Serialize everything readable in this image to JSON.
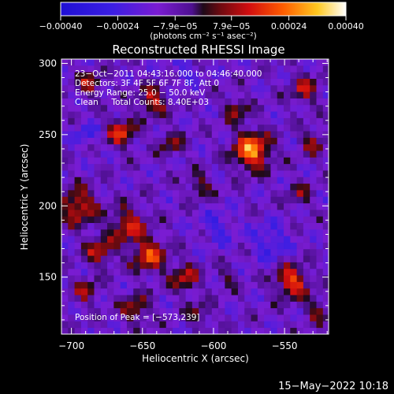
{
  "chart_data": {
    "type": "heatmap",
    "title": "Reconstructed RHESSI Image",
    "xlabel": "Heliocentric X (arcsec)",
    "ylabel": "Heliocentric Y (arcsec)",
    "xlim": [
      -707,
      -519
    ],
    "ylim": [
      110,
      303
    ],
    "x_ticks": [
      {
        "value": -700,
        "label": "−700"
      },
      {
        "value": -650,
        "label": "−650"
      },
      {
        "value": -600,
        "label": "−600"
      },
      {
        "value": -550,
        "label": "−550"
      }
    ],
    "y_ticks": [
      {
        "value": 150,
        "label": "150"
      },
      {
        "value": 200,
        "label": "200"
      },
      {
        "value": 250,
        "label": "250"
      },
      {
        "value": 300,
        "label": "300"
      }
    ],
    "colorbar": {
      "min": -0.0004,
      "max": 0.0004,
      "unit_label": "(photons cm⁻² s⁻¹ asec⁻²)",
      "ticks": [
        {
          "value": -0.0004,
          "label": "−0.00040"
        },
        {
          "value": -0.00024,
          "label": "−0.00024"
        },
        {
          "value": -7.9e-05,
          "label": "−7.9e−05"
        },
        {
          "value": 7.9e-05,
          "label": "7.9e−05"
        },
        {
          "value": 0.00024,
          "label": "0.00024"
        },
        {
          "value": 0.0004,
          "label": "0.00040"
        }
      ]
    },
    "annotations": [
      "23−Oct−2011 04:43:16.000 to 04:46:40.000",
      "Detectors: 3F 4F 5F 6F 7F 8F, Att 0",
      "Energy Range: 25.0 − 50.0 keV",
      "Clean     Total Counts: 8.40E+03"
    ],
    "peak_label": "Position of Peak = [−573,239]",
    "sources": [
      {
        "x": -687,
        "y": 286,
        "amp": 0.0002,
        "sigma": 6
      },
      {
        "x": -665,
        "y": 252,
        "amp": 0.00026,
        "sigma": 7
      },
      {
        "x": -643,
        "y": 274,
        "amp": 0.00024,
        "sigma": 7
      },
      {
        "x": -630,
        "y": 244,
        "amp": 0.00016,
        "sigma": 6
      },
      {
        "x": -573,
        "y": 239,
        "amp": 0.00038,
        "sigma": 9
      },
      {
        "x": -584,
        "y": 268,
        "amp": 0.00018,
        "sigma": 6
      },
      {
        "x": -536,
        "y": 282,
        "amp": 0.0002,
        "sigma": 7
      },
      {
        "x": -530,
        "y": 245,
        "amp": 0.00018,
        "sigma": 6
      },
      {
        "x": -540,
        "y": 208,
        "amp": 0.00014,
        "sigma": 6
      },
      {
        "x": -695,
        "y": 200,
        "amp": 0.00026,
        "sigma": 9
      },
      {
        "x": -660,
        "y": 186,
        "amp": 0.00024,
        "sigma": 9
      },
      {
        "x": -610,
        "y": 214,
        "amp": 0.00016,
        "sigma": 6
      },
      {
        "x": -680,
        "y": 168,
        "amp": 0.00022,
        "sigma": 7
      },
      {
        "x": -645,
        "y": 165,
        "amp": 0.00028,
        "sigma": 8
      },
      {
        "x": -620,
        "y": 150,
        "amp": 0.00022,
        "sigma": 7
      },
      {
        "x": -690,
        "y": 140,
        "amp": 0.00018,
        "sigma": 6
      },
      {
        "x": -655,
        "y": 128,
        "amp": 0.0002,
        "sigma": 7
      },
      {
        "x": -610,
        "y": 124,
        "amp": 0.00014,
        "sigma": 6
      },
      {
        "x": -590,
        "y": 150,
        "amp": 0.00012,
        "sigma": 5
      },
      {
        "x": -545,
        "y": 147,
        "amp": 0.0003,
        "sigma": 8
      },
      {
        "x": -527,
        "y": 127,
        "amp": 0.00016,
        "sigma": 6
      },
      {
        "x": -597,
        "y": 185,
        "amp": -0.00012,
        "sigma": 8
      },
      {
        "x": -560,
        "y": 175,
        "amp": -0.00014,
        "sigma": 9
      },
      {
        "x": -690,
        "y": 250,
        "amp": -0.00012,
        "sigma": 6
      },
      {
        "x": -620,
        "y": 295,
        "amp": -0.0001,
        "sigma": 7
      }
    ],
    "grid": false,
    "legend": "colorbar-top"
  },
  "footer": {
    "date": "15−May−2022 10:18"
  },
  "colors": {
    "background": "#000000",
    "text": "#ffffff",
    "colormap": "rainbow-to-hot"
  }
}
